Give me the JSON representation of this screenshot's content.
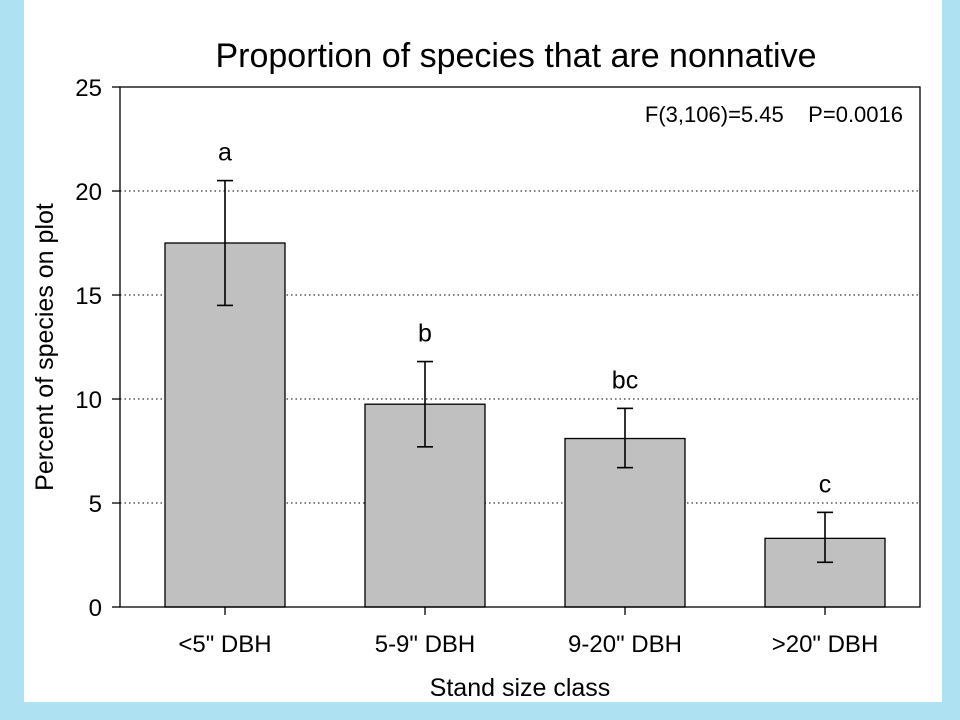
{
  "colors": {
    "frame": "#aee2f2",
    "bar_fill": "#c0c0c0",
    "bar_stroke": "#000000",
    "grid": "#000000"
  },
  "chart_data": {
    "type": "bar",
    "title": "Proportion of species that are nonnative",
    "xlabel": "Stand size class",
    "ylabel": "Percent of species on plot",
    "categories": [
      "<5\" DBH",
      "5-9\" DBH",
      "9-20\" DBH",
      ">20\" DBH"
    ],
    "values": [
      17.5,
      9.75,
      8.1,
      3.3
    ],
    "error_upper": [
      20.5,
      11.8,
      9.55,
      4.55
    ],
    "error_lower": [
      14.5,
      7.7,
      6.7,
      2.15
    ],
    "significance_letters": [
      "a",
      "b",
      "bc",
      "c"
    ],
    "ylim": [
      0,
      25
    ],
    "yticks": [
      0,
      5,
      10,
      15,
      20,
      25
    ],
    "grid": "horizontal dotted",
    "annotation": "F(3,106)=5.45    P=0.0016"
  }
}
